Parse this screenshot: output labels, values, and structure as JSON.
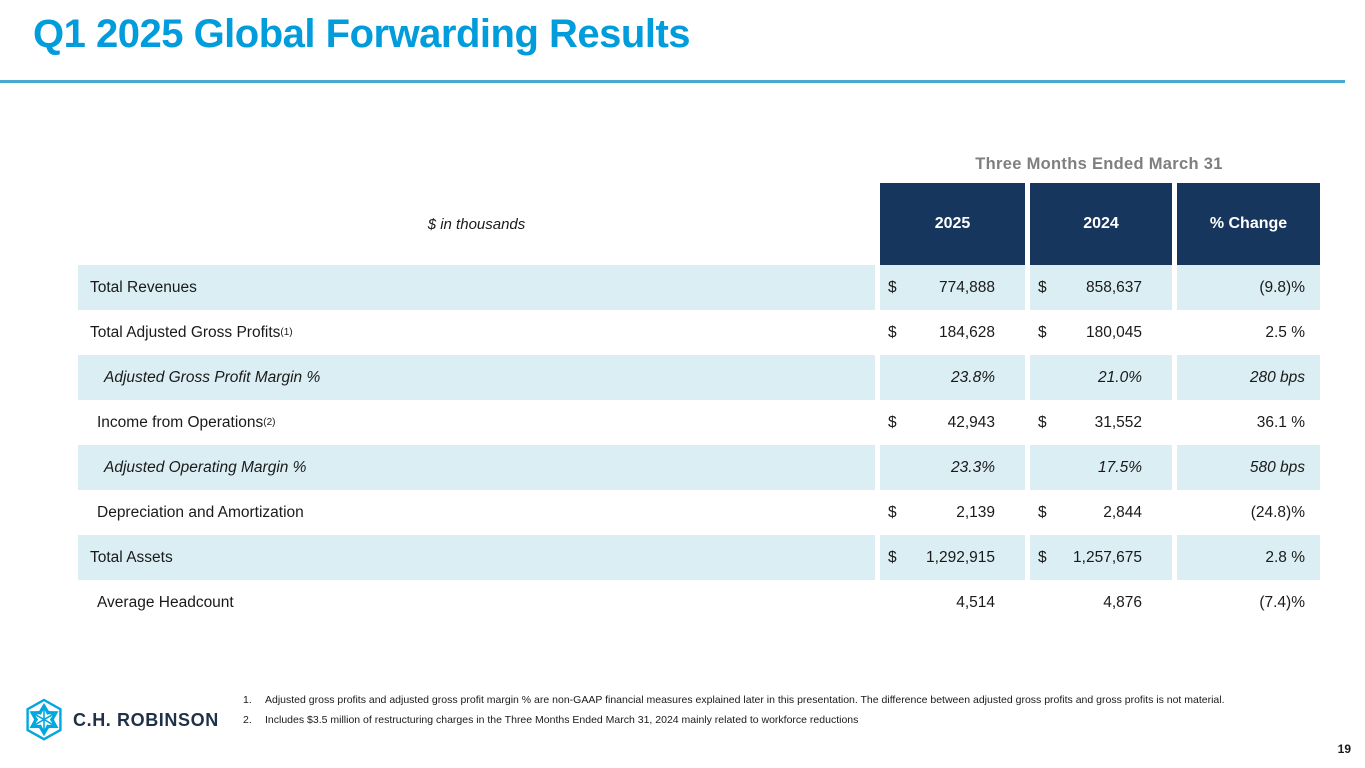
{
  "page": {
    "title": "Q1 2025 Global Forwarding Results",
    "page_number": "19"
  },
  "colors": {
    "accent_cyan": "#009CDB",
    "rule_blue": "#4AA9D1",
    "navy": "#17365D",
    "row_blue": "#DAEEF3",
    "gray_header": "#7F7F7F",
    "logo_navy": "#1F3147",
    "logo_cyan": "#00A7E1"
  },
  "table": {
    "group_header": "Three Months Ended March 31",
    "units_label": "$ in thousands",
    "columns": [
      "2025",
      "2024",
      "% Change"
    ],
    "rows": [
      {
        "label": "Total Revenues",
        "sup": "",
        "indent": 1,
        "italic": false,
        "shaded": true,
        "dollar": true,
        "v2025": "774,888",
        "v2024": "858,637",
        "change": "(9.8)%"
      },
      {
        "label": "Total Adjusted Gross Profits",
        "sup": "(1)",
        "indent": 1,
        "italic": false,
        "shaded": false,
        "dollar": true,
        "v2025": "184,628",
        "v2024": "180,045",
        "change": "2.5 %"
      },
      {
        "label": "Adjusted Gross Profit Margin %",
        "sup": "",
        "indent": 3,
        "italic": true,
        "shaded": true,
        "dollar": false,
        "v2025": "23.8%",
        "v2024": "21.0%",
        "change": "280 bps"
      },
      {
        "label": "Income from Operations",
        "sup": "(2)",
        "indent": 2,
        "italic": false,
        "shaded": false,
        "dollar": true,
        "v2025": "42,943",
        "v2024": "31,552",
        "change": "36.1 %"
      },
      {
        "label": "Adjusted Operating Margin %",
        "sup": "",
        "indent": 3,
        "italic": true,
        "shaded": true,
        "dollar": false,
        "v2025": "23.3%",
        "v2024": "17.5%",
        "change": "580 bps"
      },
      {
        "label": "Depreciation and Amortization",
        "sup": "",
        "indent": 2,
        "italic": false,
        "shaded": false,
        "dollar": true,
        "v2025": "2,139",
        "v2024": "2,844",
        "change": "(24.8)%"
      },
      {
        "label": "Total Assets",
        "sup": "",
        "indent": 1,
        "italic": false,
        "shaded": true,
        "dollar": true,
        "v2025": "1,292,915",
        "v2024": "1,257,675",
        "change": "2.8 %"
      },
      {
        "label": "Average Headcount",
        "sup": "",
        "indent": 2,
        "italic": false,
        "shaded": false,
        "dollar": false,
        "v2025": "4,514",
        "v2024": "4,876",
        "change": "(7.4)%"
      }
    ]
  },
  "footnotes": [
    {
      "num": "1.",
      "text": "Adjusted gross profits and adjusted gross profit margin % are non-GAAP financial measures explained later in this presentation. The difference between adjusted gross profits and gross profits is not material."
    },
    {
      "num": "2.",
      "text": "Includes $3.5 million of restructuring charges in the Three Months Ended March 31, 2024 mainly related to workforce reductions"
    }
  ],
  "footer": {
    "brand": "C.H. ROBINSON"
  }
}
